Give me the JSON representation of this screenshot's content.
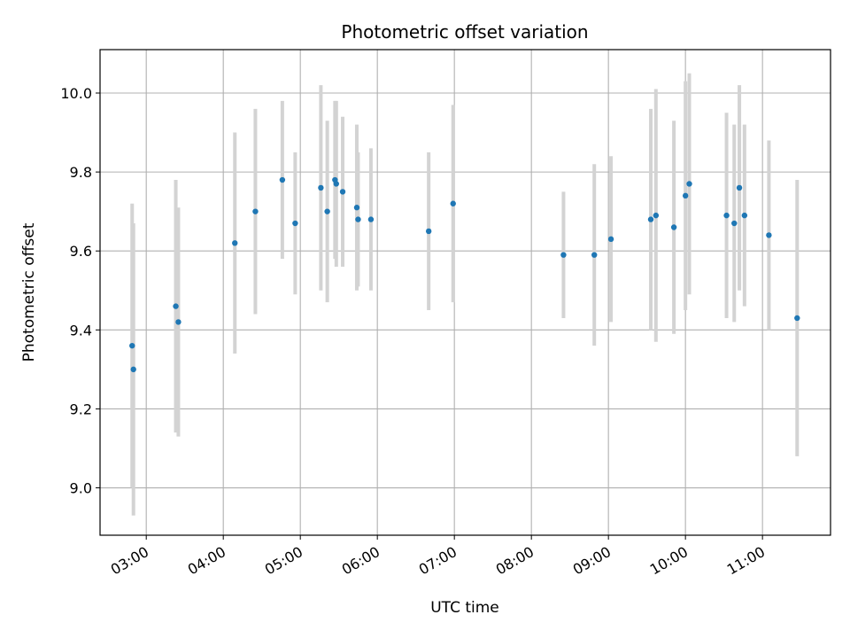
{
  "chart_data": {
    "type": "scatter",
    "title": "Photometric offset variation",
    "xlabel": "UTC time",
    "ylabel": "Photometric offset",
    "grid": true,
    "xlim": [
      "02:24",
      "11:53"
    ],
    "ylim": [
      8.88,
      10.11
    ],
    "x_ticks": [
      "03:00",
      "04:00",
      "05:00",
      "06:00",
      "07:00",
      "08:00",
      "09:00",
      "10:00",
      "11:00"
    ],
    "y_ticks": [
      "9.0",
      "9.2",
      "9.4",
      "9.6",
      "9.8",
      "10.0"
    ],
    "marker_color": "#1f77b4",
    "errorbar_color": "#d3d3d3",
    "series": [
      {
        "points": [
          {
            "x": "02:49",
            "y": 9.36,
            "err": 0.36
          },
          {
            "x": "02:50",
            "y": 9.3,
            "err": 0.37
          },
          {
            "x": "03:23",
            "y": 9.46,
            "err": 0.32
          },
          {
            "x": "03:25",
            "y": 9.42,
            "err": 0.29
          },
          {
            "x": "04:09",
            "y": 9.62,
            "err": 0.28
          },
          {
            "x": "04:25",
            "y": 9.7,
            "err": 0.26
          },
          {
            "x": "04:46",
            "y": 9.78,
            "err": 0.2
          },
          {
            "x": "04:56",
            "y": 9.67,
            "err": 0.18
          },
          {
            "x": "05:16",
            "y": 9.76,
            "err": 0.26
          },
          {
            "x": "05:21",
            "y": 9.7,
            "err": 0.23
          },
          {
            "x": "05:27",
            "y": 9.78,
            "err": 0.2
          },
          {
            "x": "05:28",
            "y": 9.77,
            "err": 0.21
          },
          {
            "x": "05:33",
            "y": 9.75,
            "err": 0.19
          },
          {
            "x": "05:44",
            "y": 9.71,
            "err": 0.21
          },
          {
            "x": "05:45",
            "y": 9.68,
            "err": 0.17
          },
          {
            "x": "05:55",
            "y": 9.68,
            "err": 0.18
          },
          {
            "x": "06:40",
            "y": 9.65,
            "err": 0.2
          },
          {
            "x": "06:59",
            "y": 9.72,
            "err": 0.25
          },
          {
            "x": "08:25",
            "y": 9.59,
            "err": 0.16
          },
          {
            "x": "08:49",
            "y": 9.59,
            "err": 0.23
          },
          {
            "x": "09:02",
            "y": 9.63,
            "err": 0.21
          },
          {
            "x": "09:33",
            "y": 9.68,
            "err": 0.28
          },
          {
            "x": "09:37",
            "y": 9.69,
            "err": 0.32
          },
          {
            "x": "09:51",
            "y": 9.66,
            "err": 0.27
          },
          {
            "x": "10:00",
            "y": 9.74,
            "err": 0.29
          },
          {
            "x": "10:03",
            "y": 9.77,
            "err": 0.28
          },
          {
            "x": "10:32",
            "y": 9.69,
            "err": 0.26
          },
          {
            "x": "10:38",
            "y": 9.67,
            "err": 0.25
          },
          {
            "x": "10:42",
            "y": 9.76,
            "err": 0.26
          },
          {
            "x": "10:46",
            "y": 9.69,
            "err": 0.23
          },
          {
            "x": "11:05",
            "y": 9.64,
            "err": 0.24
          },
          {
            "x": "11:27",
            "y": 9.43,
            "err": 0.35
          }
        ]
      }
    ]
  }
}
